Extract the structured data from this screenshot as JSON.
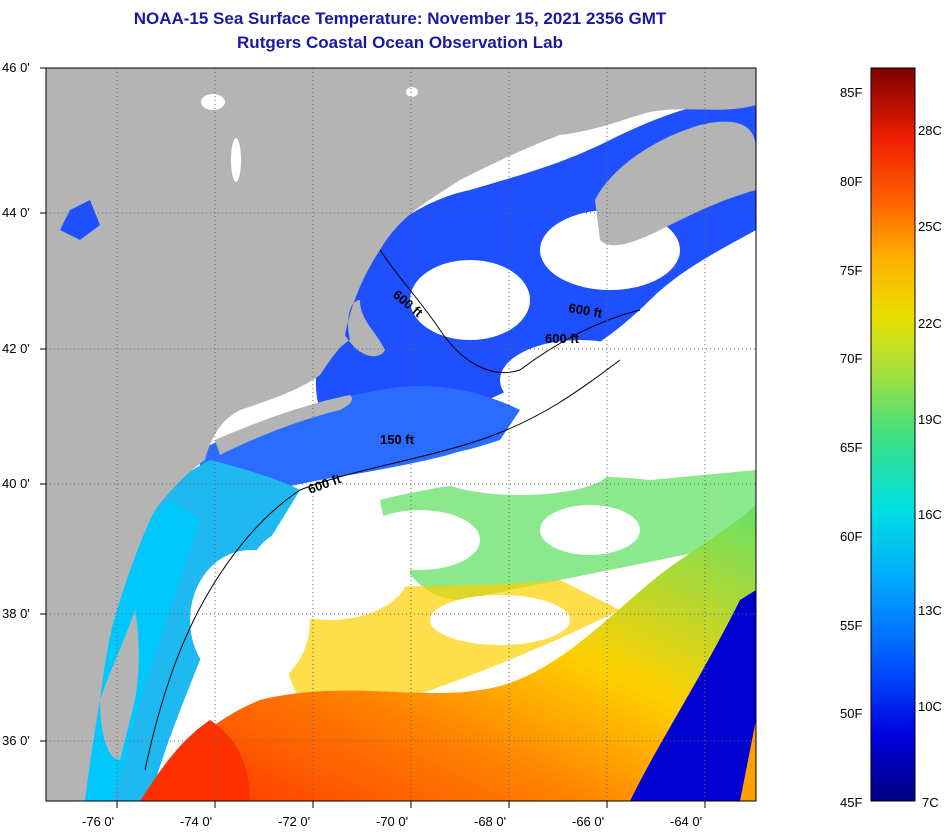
{
  "header": {
    "title": "NOAA-15 Sea Surface Temperature:  November 15, 2021 2356 GMT",
    "subtitle": "Rutgers Coastal Ocean Observation Lab"
  },
  "map": {
    "lat_ticks": [
      "46 0'",
      "44 0'",
      "42 0'",
      "40 0'",
      "38 0'",
      "36 0'"
    ],
    "lon_ticks": [
      "-76 0'",
      "-74 0'",
      "-72 0'",
      "-70 0'",
      "-68 0'",
      "-66 0'",
      "-64 0'"
    ],
    "contour_labels": [
      "600 ft",
      "600 ft",
      "600 ft",
      "150 ft",
      "600 ft"
    ]
  },
  "colorbar": {
    "fahrenheit": [
      "85F",
      "80F",
      "75F",
      "70F",
      "65F",
      "60F",
      "55F",
      "50F",
      "45F"
    ],
    "celsius": [
      "28C",
      "25C",
      "22C",
      "19C",
      "16C",
      "13C",
      "10C",
      "7C"
    ]
  },
  "colors": {
    "land": "#b4b4b4",
    "cloud": "#ffffff",
    "title": "#1a1aa0",
    "scale": [
      "#000080",
      "#0000e0",
      "#0066ff",
      "#00c8ff",
      "#00e0c0",
      "#66e066",
      "#d8e000",
      "#ffd000",
      "#ff8000",
      "#ff3000",
      "#b00000",
      "#800000"
    ]
  }
}
